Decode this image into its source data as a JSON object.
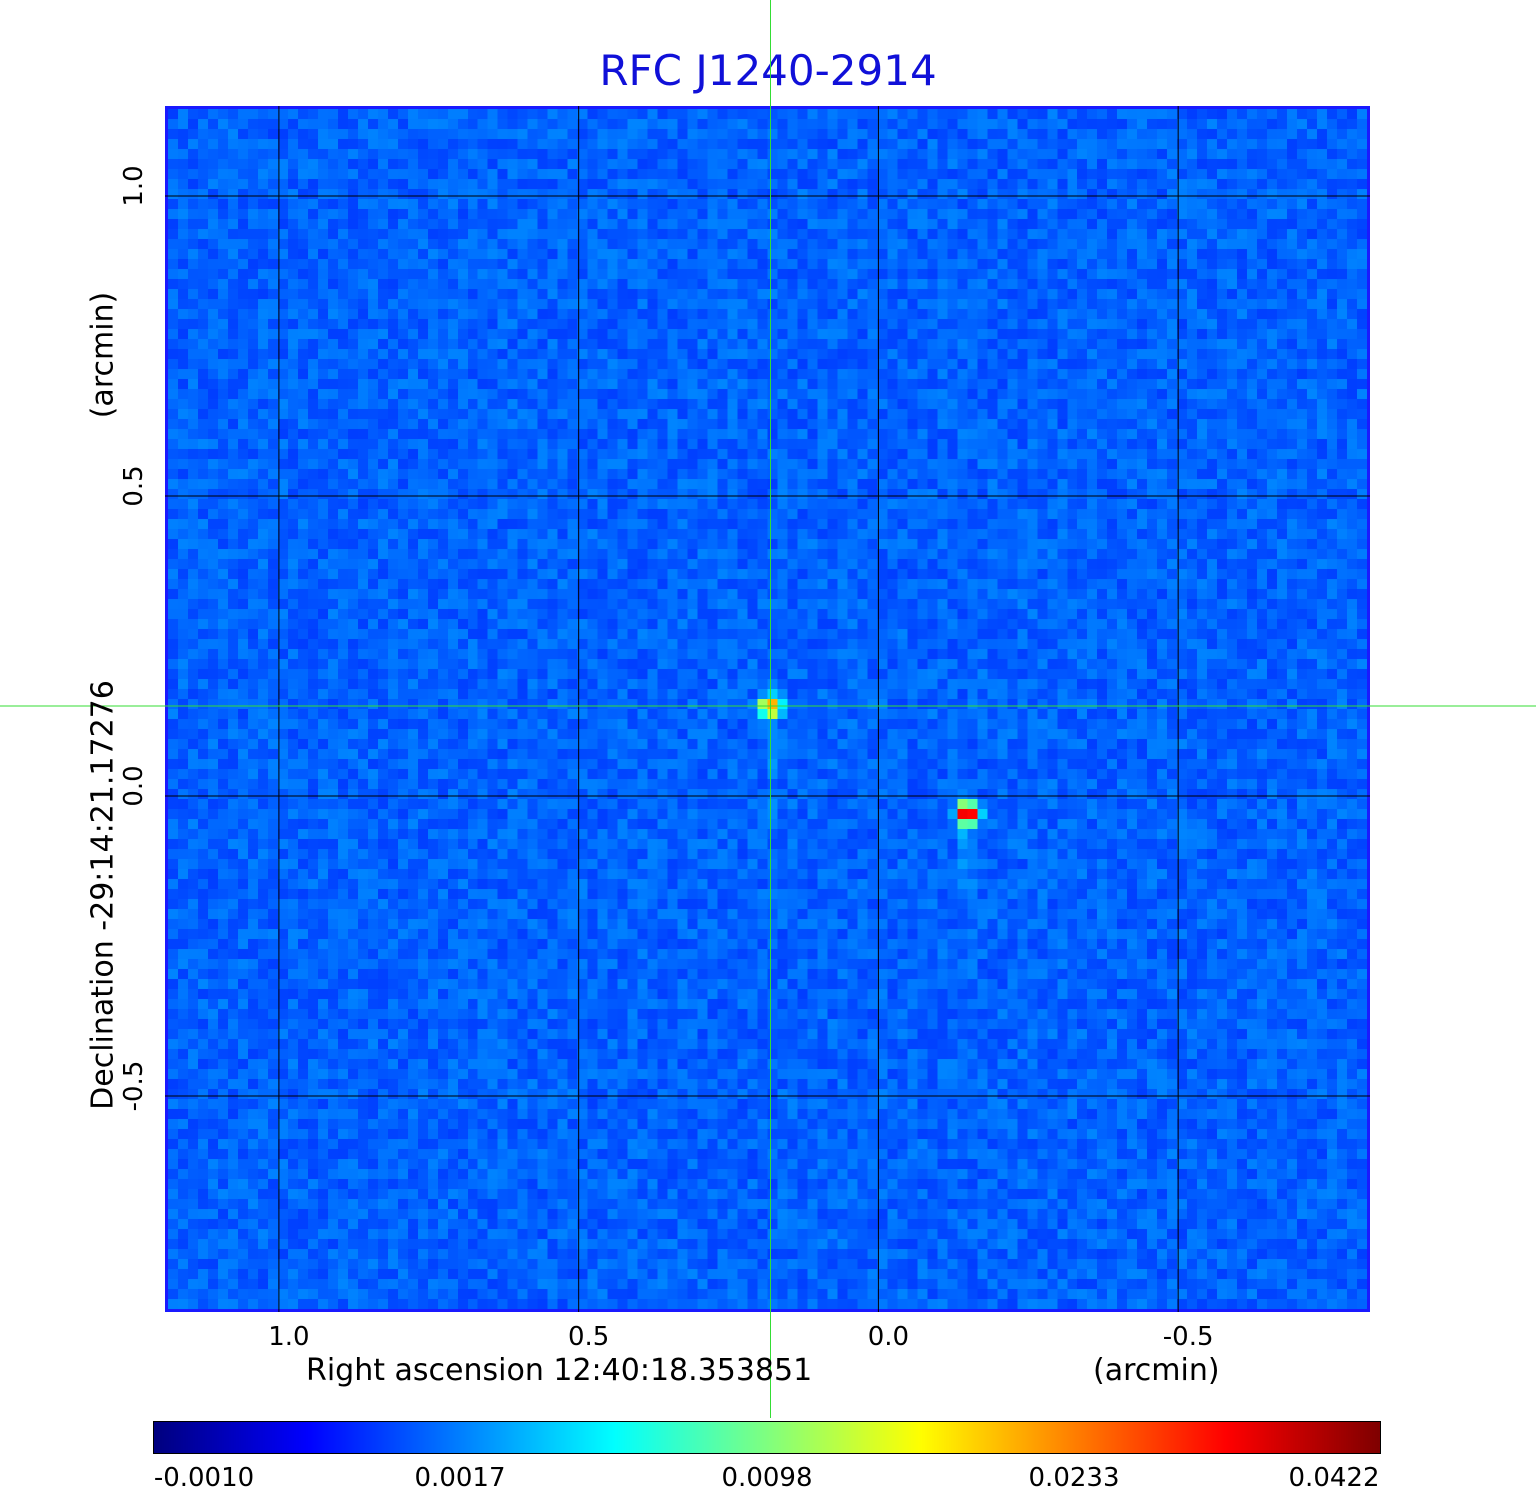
{
  "chart_data": {
    "type": "heatmap",
    "title": "RFC J1240-2914",
    "xlabel": "Right ascension  12:40:18.353851",
    "xunit": "(arcmin)",
    "ylabel": "Declination  -29:14:21.17276",
    "yunit": "(arcmin)",
    "xlim": [
      1.19,
      -0.82
    ],
    "ylim": [
      -0.86,
      1.15
    ],
    "x_ticks": [
      "1.0",
      "0.5",
      "0.0",
      "-0.5"
    ],
    "x_tick_values": [
      1.0,
      0.5,
      0.0,
      -0.5
    ],
    "y_ticks": [
      "1.0",
      "0.5",
      "0.0",
      "-0.5"
    ],
    "y_tick_values": [
      1.0,
      0.5,
      0.0,
      -0.5
    ],
    "grid": true,
    "colormap": "jet",
    "colorbar_ticks": [
      "-0.0010",
      "0.0017",
      "0.0098",
      "0.0233",
      "0.0422"
    ],
    "colorbar_range": [
      -0.001,
      0.0422
    ],
    "sources": [
      {
        "ra_offset": 0.18,
        "dec_offset": 0.15,
        "peak": 0.03
      },
      {
        "ra_offset": -0.15,
        "dec_offset": -0.03,
        "peak": 0.0422
      }
    ],
    "crosshair": {
      "x": 0.18,
      "y": 0.15,
      "color": "#33dd33"
    },
    "colors": {
      "title": "#1010d8",
      "frame": "#1a1aff",
      "grid": "#000000"
    }
  }
}
